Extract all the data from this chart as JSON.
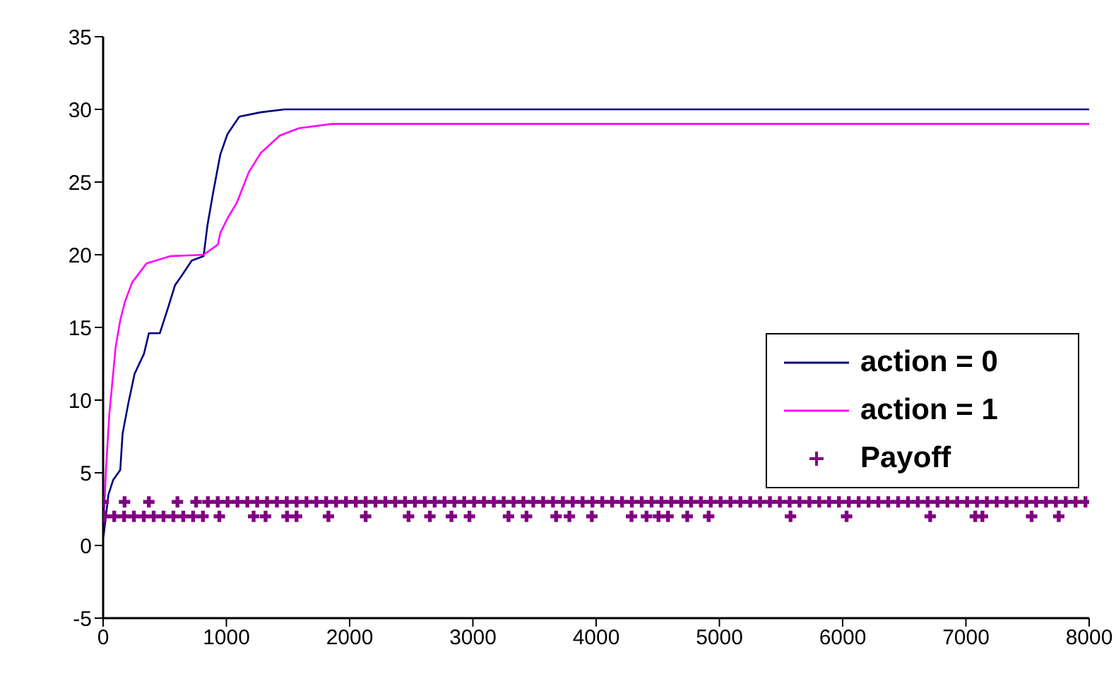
{
  "chart_data": {
    "type": "line",
    "xlim": [
      0,
      8000
    ],
    "xticks": [
      0,
      1000,
      2000,
      3000,
      4000,
      5000,
      6000,
      7000,
      8000
    ],
    "ylim": [
      -5,
      35
    ],
    "yticks": [
      -5,
      0,
      5,
      10,
      15,
      20,
      25,
      30,
      35
    ],
    "legend": "right",
    "marker": "none",
    "line_style": "solid",
    "series": [
      {
        "name": "action = 0",
        "color": "#000080",
        "x": [
          3,
          43,
          81,
          139,
          158,
          205,
          255,
          332,
          371,
          460,
          525,
          583,
          641,
          719,
          815,
          846,
          893,
          951,
          1009,
          1105,
          1279,
          1472,
          8000
        ],
        "values": [
          0.6,
          3.5,
          4.5,
          5.2,
          7.7,
          9.8,
          11.8,
          13.2,
          14.6,
          14.6,
          16.3,
          17.9,
          18.6,
          19.6,
          19.9,
          22,
          24.3,
          26.9,
          28.3,
          29.5,
          29.8,
          30,
          30
        ]
      },
      {
        "name": "action = 1",
        "color": "#ff00ff",
        "x": [
          3,
          23,
          50,
          101,
          139,
          178,
          236,
          352,
          545,
          815,
          931,
          951,
          1009,
          1086,
          1183,
          1279,
          1434,
          1588,
          1855,
          8000
        ],
        "values": [
          1.3,
          5.2,
          9,
          13.6,
          15.5,
          16.8,
          18.1,
          19.4,
          19.9,
          20,
          20.7,
          21.5,
          22.5,
          23.6,
          25.7,
          27,
          28.2,
          28.7,
          29,
          29
        ]
      },
      {
        "name": "Payoff",
        "type": "scatter",
        "color": "#800080",
        "marker": "cross",
        "x": [
          10,
          90,
          170,
          250,
          330,
          410,
          490,
          570,
          650,
          730,
          810,
          0,
          174,
          371,
          603,
          754,
          850,
          930,
          1010,
          1090,
          1170,
          1250,
          1330,
          1410,
          1490,
          1570,
          1650,
          1730,
          1810,
          1890,
          1970,
          2050,
          2130,
          2210,
          2290,
          2370,
          2450,
          2530,
          2610,
          2690,
          2770,
          2850,
          2930,
          3010,
          3090,
          3170,
          3250,
          3330,
          3410,
          3490,
          3570,
          3650,
          3730,
          3810,
          3890,
          3970,
          4050,
          4130,
          4210,
          4290,
          4370,
          4450,
          4530,
          4610,
          4690,
          4770,
          4850,
          4930,
          5010,
          5090,
          5170,
          5250,
          5330,
          5410,
          5490,
          5570,
          5650,
          5730,
          5810,
          5890,
          5970,
          6050,
          6130,
          6210,
          6290,
          6370,
          6450,
          6530,
          6610,
          6690,
          6770,
          6850,
          6930,
          7010,
          7090,
          7170,
          7250,
          7330,
          7410,
          7490,
          7570,
          7650,
          7730,
          7810,
          7890,
          7970,
          943,
          1221,
          1318,
          1492,
          1569,
          1828,
          2130,
          2478,
          2651,
          2826,
          2972,
          3289,
          3435,
          3675,
          3783,
          3965,
          4287,
          4409,
          4506,
          4583,
          4739,
          4913,
          5577,
          6032,
          6710,
          7076,
          7134,
          7533,
          7753
        ],
        "values": [
          2,
          2,
          2,
          2,
          2,
          2,
          2,
          2,
          2,
          2,
          2,
          3,
          3,
          3,
          3,
          3,
          3,
          3,
          3,
          3,
          3,
          3,
          3,
          3,
          3,
          3,
          3,
          3,
          3,
          3,
          3,
          3,
          3,
          3,
          3,
          3,
          3,
          3,
          3,
          3,
          3,
          3,
          3,
          3,
          3,
          3,
          3,
          3,
          3,
          3,
          3,
          3,
          3,
          3,
          3,
          3,
          3,
          3,
          3,
          3,
          3,
          3,
          3,
          3,
          3,
          3,
          3,
          3,
          3,
          3,
          3,
          3,
          3,
          3,
          3,
          3,
          3,
          3,
          3,
          3,
          3,
          3,
          3,
          3,
          3,
          3,
          3,
          3,
          3,
          3,
          3,
          3,
          3,
          3,
          3,
          3,
          3,
          3,
          3,
          3,
          3,
          3,
          3,
          3,
          3,
          3,
          2,
          2,
          2,
          2,
          2,
          2,
          2,
          2,
          2,
          2,
          2,
          2,
          2,
          2,
          2,
          2,
          2,
          2,
          2,
          2,
          2,
          2,
          2,
          2,
          2,
          2,
          2,
          2,
          2
        ]
      }
    ]
  }
}
